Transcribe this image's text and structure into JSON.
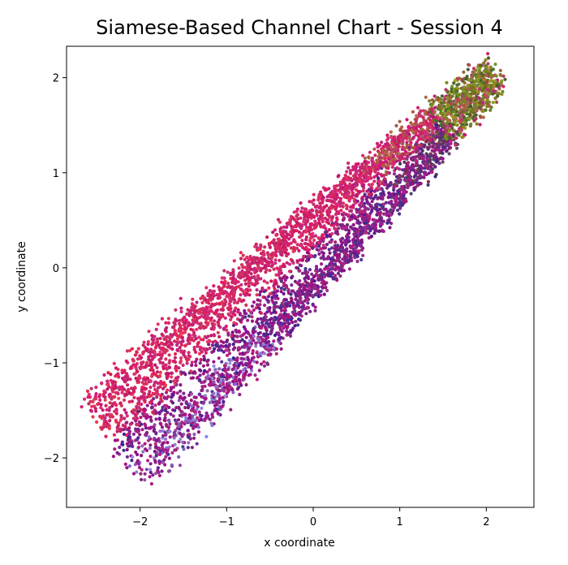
{
  "chart_data": {
    "type": "scatter",
    "title": "Siamese-Based Channel Chart - Session 4",
    "xlabel": "x coordinate",
    "ylabel": "y coordinate",
    "xlim": [
      -2.85,
      2.55
    ],
    "ylim": [
      -2.52,
      2.33
    ],
    "x_ticks": [
      -2,
      -1,
      0,
      1,
      2
    ],
    "y_ticks": [
      -2,
      -1,
      0,
      1,
      2
    ],
    "x_tick_labels": [
      "−2",
      "−1",
      "0",
      "1",
      "2"
    ],
    "y_tick_labels": [
      "−2",
      "−1",
      "0",
      "1",
      "2"
    ],
    "grid": false,
    "legend": "none",
    "point_count": 5200,
    "point_color_description": "colored by position along the manifold: red/crimson on the upper ridge, purple/blue-violet on the lower ridge, olive/green-yellow at the top-right end",
    "colors": {
      "crimson": "#e8304f",
      "magenta": "#c3207a",
      "purple": "#8a1b8a",
      "indigo": "#3b2f8f",
      "lavender": "#8f8fe0",
      "olive": "#8c9a1e",
      "darkgreen": "#3e5a2b"
    },
    "point_samples": [
      {
        "x": -2.5,
        "y": -1.75,
        "color": "crimson"
      },
      {
        "x": -2.2,
        "y": -1.5,
        "color": "crimson"
      },
      {
        "x": -1.8,
        "y": -1.0,
        "color": "crimson"
      },
      {
        "x": -1.3,
        "y": -0.45,
        "color": "crimson"
      },
      {
        "x": -0.8,
        "y": -0.05,
        "color": "magenta"
      },
      {
        "x": -0.3,
        "y": 0.45,
        "color": "magenta"
      },
      {
        "x": 0.3,
        "y": 0.95,
        "color": "crimson"
      },
      {
        "x": 0.8,
        "y": 1.35,
        "color": "magenta"
      },
      {
        "x": 1.3,
        "y": 1.65,
        "color": "magenta"
      },
      {
        "x": -2.0,
        "y": -1.9,
        "color": "purple"
      },
      {
        "x": -1.5,
        "y": -1.6,
        "color": "purple"
      },
      {
        "x": -1.2,
        "y": -1.7,
        "color": "lavender"
      },
      {
        "x": -0.8,
        "y": -1.2,
        "color": "indigo"
      },
      {
        "x": -0.3,
        "y": -0.7,
        "color": "indigo"
      },
      {
        "x": 0.2,
        "y": -0.35,
        "color": "purple"
      },
      {
        "x": 0.7,
        "y": 0.05,
        "color": "purple"
      },
      {
        "x": 1.0,
        "y": 0.55,
        "color": "indigo"
      },
      {
        "x": 1.3,
        "y": 1.0,
        "color": "indigo"
      },
      {
        "x": 1.6,
        "y": 1.45,
        "color": "olive"
      },
      {
        "x": 1.9,
        "y": 1.75,
        "color": "olive"
      },
      {
        "x": 2.1,
        "y": 2.05,
        "color": "darkgreen"
      }
    ]
  }
}
